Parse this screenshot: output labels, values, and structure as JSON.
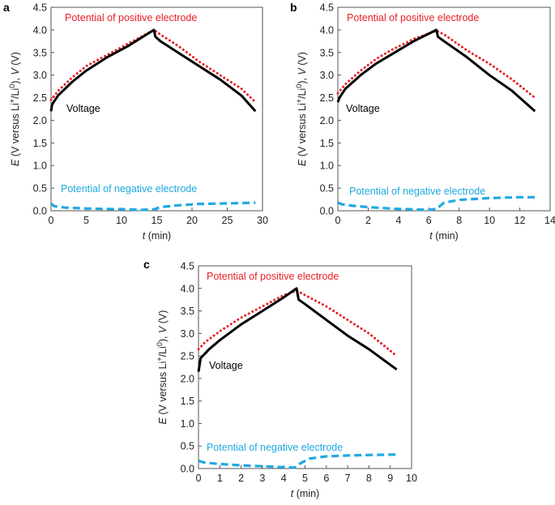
{
  "chart_data": [
    {
      "panel": "a",
      "type": "line",
      "xlabel_var": "t",
      "xlabel_unit": " (min)",
      "ylabel": "E (V versus Li+/Li0), V (V)",
      "xlim": [
        0,
        30
      ],
      "ylim": [
        0,
        4.5
      ],
      "xticks": [
        0,
        5,
        10,
        15,
        20,
        25,
        30
      ],
      "yticks": [
        0.0,
        0.5,
        1.0,
        1.5,
        2.0,
        2.5,
        3.0,
        3.5,
        4.0,
        4.5
      ],
      "annotations": {
        "positive": "Potential of positive electrode",
        "voltage": "Voltage",
        "negative": "Potential of negative electrode"
      },
      "series": [
        {
          "key": "positive",
          "color": "#e8202a",
          "style": "dotted",
          "x": [
            0,
            1,
            3,
            5,
            8,
            11,
            14.6,
            15.5,
            18,
            21,
            24,
            27,
            29
          ],
          "y": [
            2.45,
            2.65,
            2.95,
            3.2,
            3.45,
            3.7,
            4.0,
            3.9,
            3.65,
            3.3,
            3.0,
            2.7,
            2.4
          ]
        },
        {
          "key": "voltage",
          "color": "#000000",
          "style": "solid",
          "x": [
            0,
            0.15,
            1,
            3,
            5,
            8,
            11,
            14.6,
            14.8,
            15.5,
            18,
            21,
            24,
            27,
            29
          ],
          "y": [
            2.2,
            2.35,
            2.55,
            2.85,
            3.1,
            3.4,
            3.65,
            4.0,
            3.85,
            3.75,
            3.5,
            3.2,
            2.9,
            2.55,
            2.2
          ]
        },
        {
          "key": "negative",
          "color": "#1fa9e1",
          "style": "dashed",
          "x": [
            0,
            0.5,
            2,
            5,
            8,
            11,
            13,
            14.6,
            15.5,
            18,
            21,
            24,
            27,
            29
          ],
          "y": [
            0.16,
            0.1,
            0.07,
            0.05,
            0.04,
            0.03,
            0.02,
            0.03,
            0.08,
            0.12,
            0.15,
            0.16,
            0.17,
            0.18
          ]
        }
      ]
    },
    {
      "panel": "b",
      "type": "line",
      "xlabel_var": "t",
      "xlabel_unit": " (min)",
      "ylabel": "E (V versus Li+/Li0), V (V)",
      "xlim": [
        0,
        14
      ],
      "ylim": [
        0,
        4.5
      ],
      "xticks": [
        0,
        2,
        4,
        6,
        8,
        10,
        12,
        14
      ],
      "yticks": [
        0.0,
        0.5,
        1.0,
        1.5,
        2.0,
        2.5,
        3.0,
        3.5,
        4.0,
        4.5
      ],
      "annotations": {
        "positive": "Potential of positive electrode",
        "voltage": "Voltage",
        "negative": "Potential of negative electrode"
      },
      "series": [
        {
          "key": "positive",
          "color": "#e8202a",
          "style": "dotted",
          "x": [
            0,
            0.5,
            1.5,
            2.5,
            3.5,
            5,
            6.5,
            7,
            8.5,
            10,
            11.5,
            13
          ],
          "y": [
            2.6,
            2.8,
            3.1,
            3.35,
            3.55,
            3.8,
            3.98,
            3.9,
            3.55,
            3.25,
            2.9,
            2.5
          ]
        },
        {
          "key": "voltage",
          "color": "#000000",
          "style": "solid",
          "x": [
            0,
            0.1,
            0.5,
            1.5,
            2.5,
            3.5,
            5,
            6.5,
            6.6,
            7,
            8.5,
            10,
            11.5,
            13
          ],
          "y": [
            2.4,
            2.5,
            2.7,
            3.0,
            3.25,
            3.45,
            3.75,
            4.0,
            3.85,
            3.75,
            3.4,
            3.0,
            2.65,
            2.2
          ]
        },
        {
          "key": "negative",
          "color": "#1fa9e1",
          "style": "dashed",
          "x": [
            0,
            0.3,
            1,
            2,
            3,
            4,
            5,
            6,
            6.5,
            7,
            8,
            9,
            10,
            11,
            12,
            13
          ],
          "y": [
            0.18,
            0.14,
            0.11,
            0.08,
            0.06,
            0.04,
            0.03,
            0.02,
            0.04,
            0.18,
            0.24,
            0.26,
            0.28,
            0.29,
            0.3,
            0.3
          ]
        }
      ]
    },
    {
      "panel": "c",
      "type": "line",
      "xlabel_var": "t",
      "xlabel_unit": " (min)",
      "ylabel": "E (V versus Li+/Li0), V (V)",
      "xlim": [
        0,
        10
      ],
      "ylim": [
        0,
        4.5
      ],
      "xticks": [
        0,
        1,
        2,
        3,
        4,
        5,
        6,
        7,
        8,
        9,
        10
      ],
      "yticks": [
        0.0,
        0.5,
        1.0,
        1.5,
        2.0,
        2.5,
        3.0,
        3.5,
        4.0,
        4.5
      ],
      "annotations": {
        "positive": "Potential of positive electrode",
        "voltage": "Voltage",
        "negative": "Potential of negative electrode"
      },
      "series": [
        {
          "key": "positive",
          "color": "#e8202a",
          "style": "dotted",
          "x": [
            0,
            0.3,
            1,
            2,
            3,
            4,
            4.6,
            5,
            6,
            7,
            8,
            9.3
          ],
          "y": [
            2.65,
            2.8,
            3.05,
            3.35,
            3.6,
            3.85,
            3.95,
            3.85,
            3.6,
            3.3,
            3.0,
            2.5
          ]
        },
        {
          "key": "voltage",
          "color": "#000000",
          "style": "solid",
          "x": [
            0,
            0.1,
            0.5,
            1,
            2,
            3,
            4,
            4.6,
            4.7,
            5,
            6,
            7,
            8,
            9.3
          ],
          "y": [
            2.15,
            2.45,
            2.65,
            2.85,
            3.2,
            3.5,
            3.8,
            4.0,
            3.75,
            3.65,
            3.3,
            2.95,
            2.65,
            2.2
          ]
        },
        {
          "key": "negative",
          "color": "#1fa9e1",
          "style": "dashed",
          "x": [
            0,
            0.3,
            1,
            2,
            3,
            4,
            4.5,
            4.8,
            5.2,
            6,
            7,
            8,
            9.3
          ],
          "y": [
            0.17,
            0.13,
            0.1,
            0.07,
            0.05,
            0.03,
            0.02,
            0.12,
            0.22,
            0.27,
            0.29,
            0.3,
            0.31
          ]
        }
      ]
    }
  ]
}
